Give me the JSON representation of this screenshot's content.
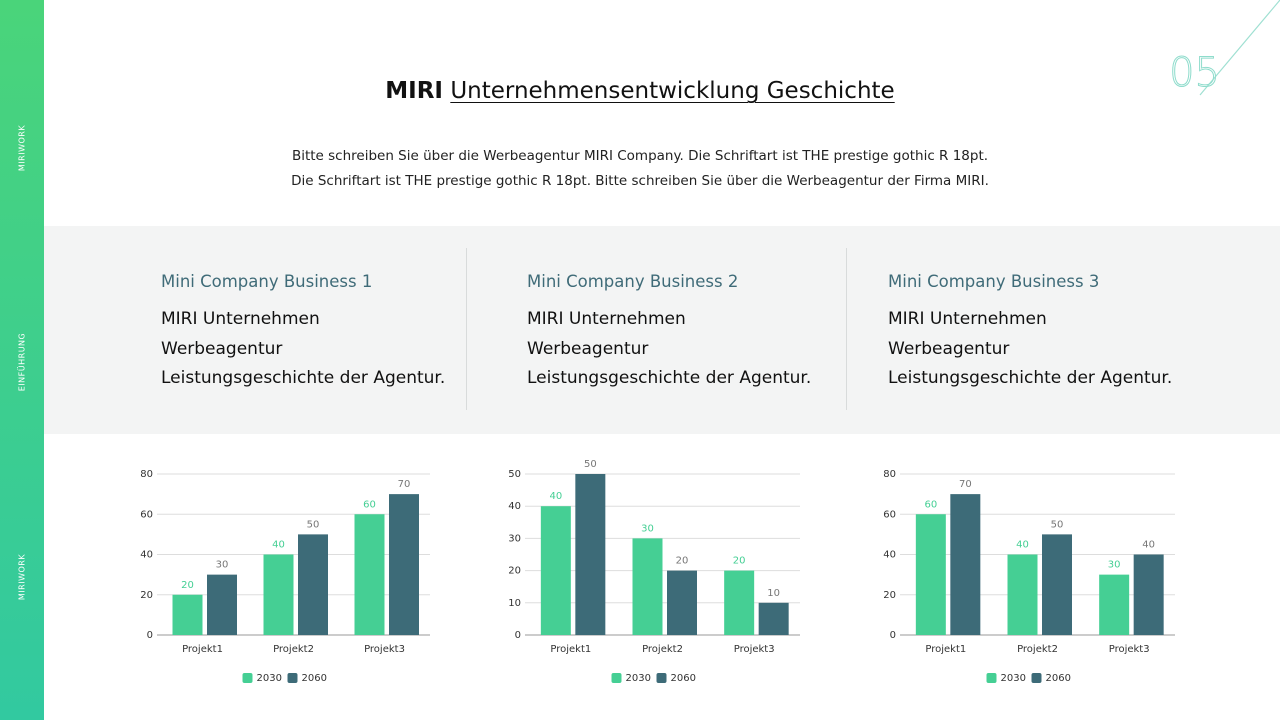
{
  "sidebar": [
    "MIRIWORK",
    "EINFÜHRUNG",
    "MIRIWORK"
  ],
  "page_number": "05",
  "title": {
    "bold": "MIRI",
    "underlined": "Unternehmensentwicklung Geschichte"
  },
  "intro": [
    "Bitte schreiben Sie über die Werbeagentur MIRI Company. Die Schriftart ist THE prestige gothic R 18pt.",
    "Die Schriftart ist THE prestige gothic R 18pt. Bitte schreiben Sie über die Werbeagentur der Firma MIRI."
  ],
  "cards": [
    {
      "heading": "Mini Company Business 1",
      "lines": [
        "MIRI Unternehmen",
        "Werbeagentur",
        "Leistungsgeschichte der Agentur."
      ]
    },
    {
      "heading": "Mini Company Business 2",
      "lines": [
        "MIRI Unternehmen",
        "Werbeagentur",
        "Leistungsgeschichte der Agentur."
      ]
    },
    {
      "heading": "Mini Company Business 3",
      "lines": [
        "MIRI Unternehmen",
        "Werbeagentur",
        "Leistungsgeschichte der Agentur."
      ]
    }
  ],
  "chart_data": [
    {
      "type": "bar",
      "categories": [
        "Projekt1",
        "Projekt2",
        "Projekt3"
      ],
      "series": [
        {
          "name": "2030",
          "color": "#45cf94",
          "values": [
            20,
            40,
            60
          ]
        },
        {
          "name": "2060",
          "color": "#3d6b78",
          "values": [
            30,
            50,
            70
          ]
        }
      ],
      "ylim": [
        0,
        80
      ],
      "yticks": [
        0,
        20,
        40,
        60,
        80
      ],
      "grid": true
    },
    {
      "type": "bar",
      "categories": [
        "Projekt1",
        "Projekt2",
        "Projekt3"
      ],
      "series": [
        {
          "name": "2030",
          "color": "#45cf94",
          "values": [
            40,
            30,
            20
          ]
        },
        {
          "name": "2060",
          "color": "#3d6b78",
          "values": [
            50,
            20,
            10
          ]
        }
      ],
      "ylim": [
        0,
        50
      ],
      "yticks": [
        0,
        10,
        20,
        30,
        40,
        50
      ],
      "grid": true
    },
    {
      "type": "bar",
      "categories": [
        "Projekt1",
        "Projekt2",
        "Projekt3"
      ],
      "series": [
        {
          "name": "2030",
          "color": "#45cf94",
          "values": [
            60,
            40,
            30
          ]
        },
        {
          "name": "2060",
          "color": "#3d6b78",
          "values": [
            70,
            50,
            40
          ]
        }
      ],
      "ylim": [
        0,
        80
      ],
      "yticks": [
        0,
        20,
        40,
        60,
        80
      ],
      "grid": true
    }
  ]
}
